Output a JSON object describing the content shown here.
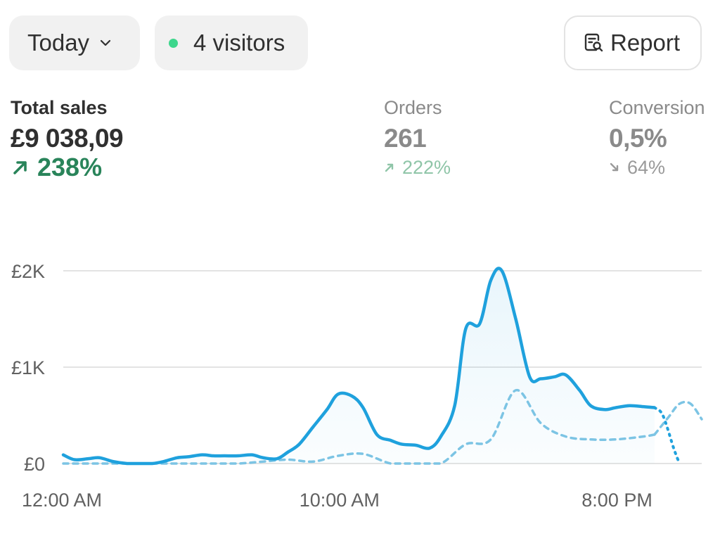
{
  "toolbar": {
    "date_label": "Today",
    "visitors_label": "4 visitors",
    "report_label": "Report",
    "icons": {
      "date": "chevron-down-icon",
      "visitors": "live-dot-icon",
      "report": "report-search-icon"
    },
    "live_dot_color": "#3dd68c"
  },
  "metrics": {
    "sales": {
      "label": "Total sales",
      "value": "£9 038,09",
      "change": "238%",
      "direction": "up",
      "color": "#29845a"
    },
    "orders": {
      "label": "Orders",
      "value": "261",
      "change": "222%",
      "direction": "up",
      "color": "#8fc5a8"
    },
    "conversion": {
      "label": "Conversion",
      "value": "0,5%",
      "change": "64%",
      "direction": "down",
      "color": "#9a9a9a"
    }
  },
  "chart_data": {
    "type": "line",
    "x_ticks": [
      "12:00 AM",
      "10:00 AM",
      "8:00 PM"
    ],
    "y_ticks": [
      "£0",
      "£1K",
      "£2K"
    ],
    "ylim": [
      0,
      2000
    ],
    "xlim": [
      0,
      23
    ],
    "grid": true,
    "colors": {
      "current": "#1fa1dd",
      "comparison": "#7cc4e4"
    },
    "series": [
      {
        "role": "current",
        "x": [
          0,
          0.4,
          0.9,
          1.3,
          1.8,
          2.3,
          2.8,
          3.2,
          3.6,
          4.1,
          4.5,
          5.0,
          5.4,
          5.8,
          6.3,
          6.8,
          7.2,
          7.7,
          8.1,
          8.5,
          9.0,
          9.5,
          9.9,
          10.4,
          10.8,
          11.3,
          11.8,
          12.2,
          12.7,
          13.2,
          13.6,
          14.1,
          14.5,
          15.0,
          15.4,
          15.8,
          16.3,
          16.8,
          17.2,
          17.7,
          18.1,
          18.6,
          19.0,
          19.5,
          19.9,
          20.4,
          20.9,
          21.3
        ],
        "values": [
          90,
          40,
          50,
          60,
          20,
          0,
          0,
          0,
          20,
          60,
          70,
          90,
          80,
          80,
          80,
          90,
          60,
          50,
          120,
          200,
          380,
          560,
          720,
          700,
          580,
          300,
          240,
          200,
          190,
          160,
          280,
          600,
          1400,
          1450,
          1900,
          2000,
          1500,
          900,
          880,
          900,
          920,
          760,
          600,
          560,
          580,
          600,
          590,
          580
        ]
      },
      {
        "role": "comparison",
        "x": [
          0,
          0.9,
          1.8,
          2.8,
          3.6,
          4.5,
          5.4,
          6.3,
          7.2,
          8.1,
          9.0,
          9.9,
          10.8,
          11.8,
          12.7,
          13.6,
          14.5,
          15.4,
          16.3,
          17.2,
          18.1,
          19.0,
          19.9,
          20.9,
          21.3
        ],
        "values": [
          0,
          0,
          0,
          0,
          0,
          0,
          0,
          0,
          20,
          40,
          20,
          80,
          100,
          0,
          0,
          0,
          200,
          250,
          760,
          420,
          280,
          250,
          250,
          280,
          300
        ]
      },
      {
        "role": "comparison-ahead",
        "x": [
          21.3,
          21.8,
          22.2,
          22.6,
          23.0
        ],
        "values": [
          300,
          480,
          620,
          620,
          460
        ]
      },
      {
        "role": "current-projection",
        "x": [
          21.3,
          21.6,
          22.0,
          22.2
        ],
        "values": [
          580,
          500,
          150,
          0
        ]
      }
    ]
  }
}
